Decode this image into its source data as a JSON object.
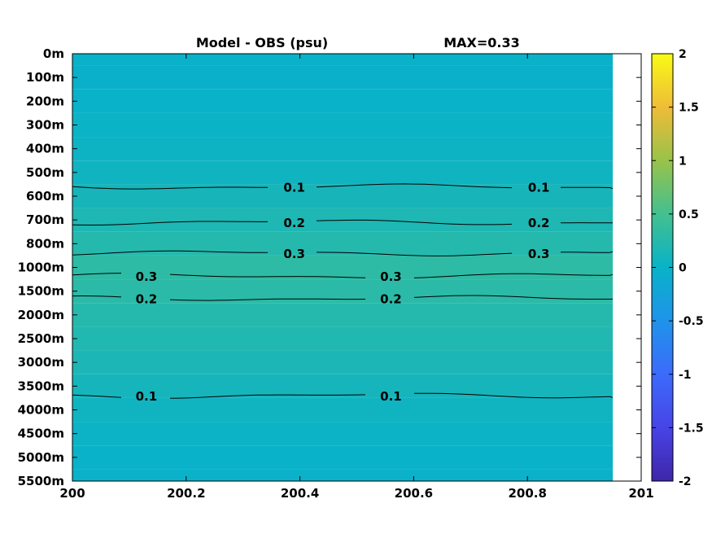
{
  "chart_data": {
    "type": "heatmap",
    "title": "Model - OBS (psu)",
    "max_label": "MAX=0.33",
    "xlabel": "",
    "ylabel": "",
    "x_ticks": [
      "200",
      "200.2",
      "200.4",
      "200.6",
      "200.8",
      "201"
    ],
    "xlim": [
      200,
      201
    ],
    "x_data_end": 200.95,
    "y_ticks": [
      "0m",
      "100m",
      "200m",
      "300m",
      "400m",
      "500m",
      "600m",
      "700m",
      "800m",
      "1000m",
      "1500m",
      "2000m",
      "2500m",
      "3000m",
      "3500m",
      "4000m",
      "4500m",
      "5000m",
      "5500m"
    ],
    "colorbar": {
      "range": [
        -2,
        2
      ],
      "ticks": [
        "2",
        "1.5",
        "1",
        "0.5",
        "0",
        "-0.5",
        "-1",
        "-1.5",
        "-2"
      ],
      "colormap": "parula"
    },
    "layer_values": [
      0.0,
      -0.03,
      0.0,
      0.02,
      0.04,
      0.06,
      0.12,
      0.18,
      0.24,
      0.31,
      0.29,
      0.24,
      0.2,
      0.16,
      0.11,
      0.06,
      0.03,
      0.0,
      -0.02
    ],
    "contours": [
      {
        "label": "0.1",
        "depth": "~560m",
        "label_x": [
          200.39,
          200.82
        ]
      },
      {
        "label": "0.2",
        "depth": "~710m",
        "label_x": [
          200.39,
          200.82
        ]
      },
      {
        "label": "0.3",
        "depth": "~880m",
        "label_x": [
          200.39,
          200.82
        ]
      },
      {
        "label": "0.3",
        "depth": "~1180m",
        "label_x": [
          200.13,
          200.56
        ]
      },
      {
        "label": "0.2",
        "depth": "~1650m",
        "label_x": [
          200.13,
          200.56
        ]
      },
      {
        "label": "0.1",
        "depth": "~3700m",
        "label_x": [
          200.13,
          200.56
        ]
      }
    ]
  }
}
